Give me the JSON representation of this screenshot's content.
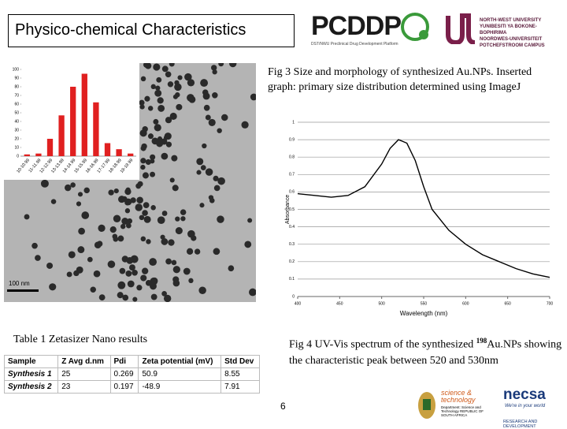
{
  "header": {
    "title": "Physico-chemical Characteristics",
    "logo_text": "PCDDP",
    "logo_subtitle": "DST/NWU Preclinical Drug Development Platform",
    "university": [
      "NORTH-WEST UNIVERSITY",
      "YUNIBESITI YA BOKONE-BOPHIRIMA",
      "NOORDWES-UNIVERSITEIT",
      "POTCHEFSTROOM CAMPUS"
    ]
  },
  "tem_image": {
    "scale_bar": "100 nm"
  },
  "histogram": {
    "type": "bar",
    "categories": [
      "10-10.99",
      "11-11.99",
      "12-12.99",
      "13-13.99",
      "14-14.99",
      "15-15.99",
      "16-16.99",
      "17-17.99",
      "18-18.99",
      "19-19.99"
    ],
    "values": [
      2,
      3,
      20,
      47,
      80,
      95,
      62,
      15,
      8,
      3
    ],
    "color": "#e02020",
    "ylim": [
      0,
      100
    ],
    "yticks": [
      0,
      10,
      20,
      30,
      40,
      50,
      60,
      70,
      80,
      90,
      100
    ],
    "grid": false
  },
  "fig3_caption": "Fig 3 Size and morphology of synthesized Au.NPs. Inserted graph: primary size distribution determined using ImageJ",
  "uvvis": {
    "type": "line",
    "x": [
      400,
      420,
      440,
      460,
      480,
      500,
      510,
      520,
      530,
      540,
      550,
      560,
      580,
      600,
      620,
      640,
      660,
      680,
      700
    ],
    "values": [
      0.59,
      0.58,
      0.57,
      0.58,
      0.63,
      0.76,
      0.85,
      0.9,
      0.88,
      0.78,
      0.63,
      0.5,
      0.38,
      0.3,
      0.24,
      0.2,
      0.16,
      0.13,
      0.11
    ],
    "color": "#000000",
    "xlim": [
      400,
      700
    ],
    "xticks": [
      400,
      450,
      500,
      550,
      600,
      650,
      700
    ],
    "ylim": [
      0,
      1
    ],
    "yticks": [
      0,
      0.1,
      0.2,
      0.3,
      0.4,
      0.5,
      0.6,
      0.7,
      0.8,
      0.9,
      1
    ],
    "ylabel": "Absorbance",
    "xlabel": "Wavelength (nm)",
    "grid": true
  },
  "fig4_caption": {
    "prefix": "Fig 4  UV-Vis spectrum of the synthesized",
    "isotope": "198",
    "rest": "Au.NPs showing the characteristic peak between 520 and 530nm"
  },
  "table": {
    "caption": "Table 1 Zetasizer Nano results",
    "header": [
      "Sample",
      "Z Avg d.nm",
      "Pdi",
      "Zeta potential (mV)",
      "Std Dev"
    ],
    "rows": [
      [
        "Synthesis 1",
        "25",
        "0.269",
        "50.9",
        "8.55"
      ],
      [
        "Synthesis 2",
        "23",
        "0.197",
        "-48.9",
        "7.91"
      ]
    ]
  },
  "page_number": "6",
  "footer": {
    "dst": "science & technology",
    "dst_sub": "Department: Science and Technology REPUBLIC OF SOUTH AFRICA",
    "necsa": "necsa",
    "necsa_tag": "We're in your world",
    "necsa_sub": "RESEARCH AND DEVELOPMENT"
  }
}
